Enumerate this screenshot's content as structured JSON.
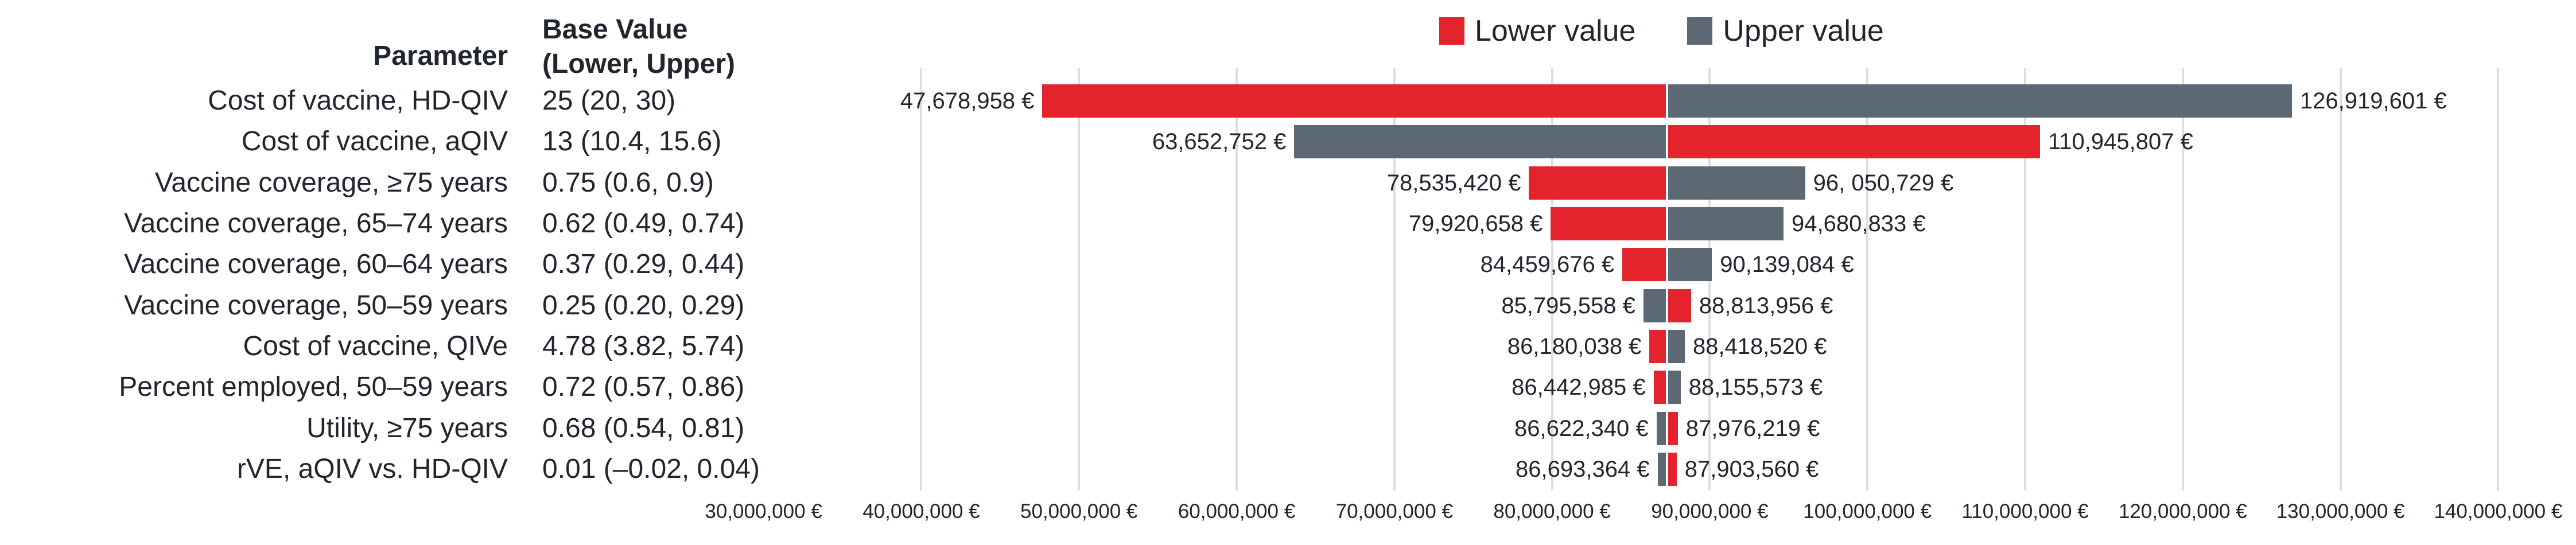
{
  "figure": {
    "parameter_header": "Parameter",
    "base_value_header_line1": "Base Value",
    "base_value_header_line2": "(Lower, Upper)",
    "legend": {
      "lower_label": "Lower value",
      "upper_label": "Upper value"
    }
  },
  "chart_data": {
    "type": "bar",
    "subtype": "tornado",
    "orientation": "horizontal",
    "unit": "EUR",
    "legend_position": "top",
    "grid": true,
    "colors": {
      "lower": "#E3242C",
      "upper": "#5C6974",
      "gridline": "#DEDEDE",
      "text": "#21252E"
    },
    "axis": {
      "min": 30000000,
      "max": 145000000,
      "tick_step": 10000000,
      "ticks": [
        30000000,
        40000000,
        50000000,
        60000000,
        70000000,
        80000000,
        90000000,
        100000000,
        110000000,
        120000000,
        130000000,
        140000000
      ],
      "tick_labels": [
        "30,000,000 €",
        "40,000,000 €",
        "50,000,000 €",
        "60,000,000 €",
        "70,000,000 €",
        "80,000,000 €",
        "90,000,000 €",
        "100,000,000 €",
        "110,000,000 €",
        "120,000,000 €",
        "130,000,000 €",
        "140,000,000 €"
      ]
    },
    "center_value": 87298462,
    "rows": [
      {
        "parameter": "Cost of vaccine, HD-QIV",
        "base_value": "25 (20, 30)",
        "lower_result": 47678958,
        "upper_result": 126919601,
        "lower_label": "47,678,958 €",
        "upper_label": "126,919,601 €"
      },
      {
        "parameter": "Cost of vaccine, aQIV",
        "base_value": "13 (10.4, 15.6)",
        "lower_result": 110945807,
        "upper_result": 63652752,
        "lower_label": "110,945,807 €",
        "upper_label": "63,652,752 €"
      },
      {
        "parameter": "Vaccine coverage, ≥75 years",
        "base_value": "0.75 (0.6, 0.9)",
        "lower_result": 78535420,
        "upper_result": 96050729,
        "lower_label": "78,535,420 €",
        "upper_label": "96, 050,729 €"
      },
      {
        "parameter": "Vaccine coverage, 65–74 years",
        "base_value": "0.62 (0.49, 0.74)",
        "lower_result": 79920658,
        "upper_result": 94680833,
        "lower_label": "79,920,658 €",
        "upper_label": "94,680,833 €"
      },
      {
        "parameter": "Vaccine coverage, 60–64 years",
        "base_value": "0.37 (0.29, 0.44)",
        "lower_result": 84459676,
        "upper_result": 90139084,
        "lower_label": "84,459,676 €",
        "upper_label": "90,139,084 €"
      },
      {
        "parameter": "Vaccine coverage, 50–59 years",
        "base_value": "0.25 (0.20, 0.29)",
        "lower_result": 88813956,
        "upper_result": 85795558,
        "lower_label": "88,813,956 €",
        "upper_label": "85,795,558 €"
      },
      {
        "parameter": "Cost of vaccine, QIVe",
        "base_value": "4.78 (3.82, 5.74)",
        "lower_result": 86180038,
        "upper_result": 88418520,
        "lower_label": "86,180,038 €",
        "upper_label": "88,418,520 €"
      },
      {
        "parameter": "Percent employed, 50–59 years",
        "base_value": "0.72 (0.57, 0.86)",
        "lower_result": 86442985,
        "upper_result": 88155573,
        "lower_label": "86,442,985 €",
        "upper_label": "88,155,573 €"
      },
      {
        "parameter": "Utility, ≥75 years",
        "base_value": "0.68 (0.54, 0.81)",
        "lower_result": 87976219,
        "upper_result": 86622340,
        "lower_label": "87,976,219 €",
        "upper_label": "86,622,340 €"
      },
      {
        "parameter": "rVE, aQIV vs. HD-QIV",
        "base_value": "0.01 (–0.02, 0.04)",
        "lower_result": 87903560,
        "upper_result": 86693364,
        "lower_label": "87,903,560 €",
        "upper_label": "86,693,364 €"
      }
    ]
  }
}
